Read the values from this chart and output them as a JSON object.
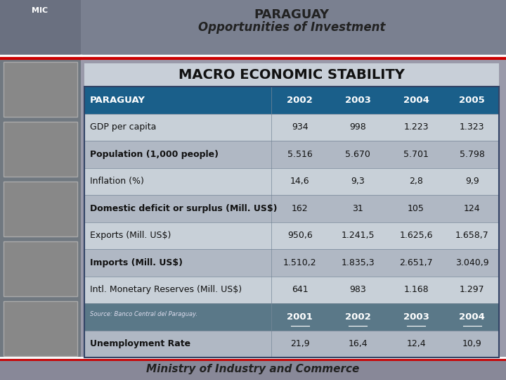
{
  "title_line1": "PARAGUAY",
  "title_line2": "Opportunities of Investment",
  "section_title": "MACRO ECONOMIC STABILITY",
  "header_row": [
    "PARAGUAY",
    "2002",
    "2003",
    "2004",
    "2005"
  ],
  "data_rows": [
    [
      "GDP per capita",
      "934",
      "998",
      "1.223",
      "1.323"
    ],
    [
      "Population (1,000 people)",
      "5.516",
      "5.670",
      "5.701",
      "5.798"
    ],
    [
      "Inflation (%)",
      "14,6",
      "9,3",
      "2,8",
      "9,9"
    ],
    [
      "Domestic deficit or surplus (Mill. US$)",
      "162",
      "31",
      "105",
      "124"
    ],
    [
      "Exports (Mill. US$)",
      "950,6",
      "1.241,5",
      "1.625,6",
      "1.658,7"
    ],
    [
      "Imports (Mill. US$)",
      "1.510,2",
      "1.835,3",
      "2.651,7",
      "3.040,9"
    ],
    [
      "Intl. Monetary Reserves (Mill. US$)",
      "641",
      "983",
      "1.168",
      "1.297"
    ]
  ],
  "source_text": "Source: Banco Central del Paraguay.",
  "sub_header_row": [
    "",
    "2001",
    "2002",
    "2003",
    "2004"
  ],
  "unemployment_row": [
    "Unemployment Rate",
    "21,9",
    "16,4",
    "12,4",
    "10,9"
  ],
  "footer_text": "Ministry of Industry and Commerce",
  "bg_color": "#9a9aaa",
  "header_bg": "#1a5f8a",
  "header_text_color": "#ffffff",
  "row_even_bg": "#c8d0d8",
  "row_odd_bg": "#b0b8c4",
  "sub_header_bg": "#5a7888",
  "title_area_bg": "#7a8090",
  "logo_area_bg": "#6a7080",
  "left_strip_bg": "#707880",
  "img_placeholder_bg": "#888888",
  "section_title_bg": "#c8cfd8",
  "red_line_color": "#cc0000",
  "footer_bg": "#888898"
}
